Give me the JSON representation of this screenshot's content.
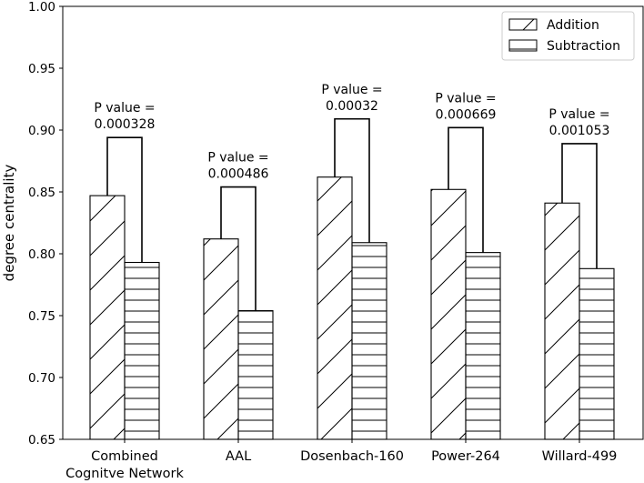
{
  "chart_data": {
    "type": "bar",
    "title": "",
    "xlabel": "",
    "ylabel": "degree centrality",
    "ylim": [
      0.65,
      1.0
    ],
    "yticks": [
      "0.65",
      "0.70",
      "0.75",
      "0.80",
      "0.85",
      "0.90",
      "0.95",
      "1.00"
    ],
    "grid": false,
    "legend_position": "top-right",
    "categories": [
      [
        "Combined",
        "Cognitve Network"
      ],
      [
        "AAL"
      ],
      [
        "Dosenbach-160"
      ],
      [
        "Power-264"
      ],
      [
        "Willard-499"
      ]
    ],
    "series": [
      {
        "name": "Addition",
        "hatch": "diagonal",
        "values": [
          0.847,
          0.812,
          0.862,
          0.852,
          0.841
        ]
      },
      {
        "name": "Subtraction",
        "hatch": "horizontal",
        "values": [
          0.793,
          0.754,
          0.809,
          0.801,
          0.788
        ]
      }
    ],
    "brackets": [
      {
        "top": 0.894,
        "label": [
          "P value =",
          "0.000328"
        ]
      },
      {
        "top": 0.854,
        "label": [
          "P value =",
          "0.000486"
        ]
      },
      {
        "top": 0.909,
        "label": [
          "P value =",
          "0.00032"
        ]
      },
      {
        "top": 0.902,
        "label": [
          "P value =",
          "0.000669"
        ]
      },
      {
        "top": 0.889,
        "label": [
          "P value =",
          "0.001053"
        ]
      }
    ]
  }
}
